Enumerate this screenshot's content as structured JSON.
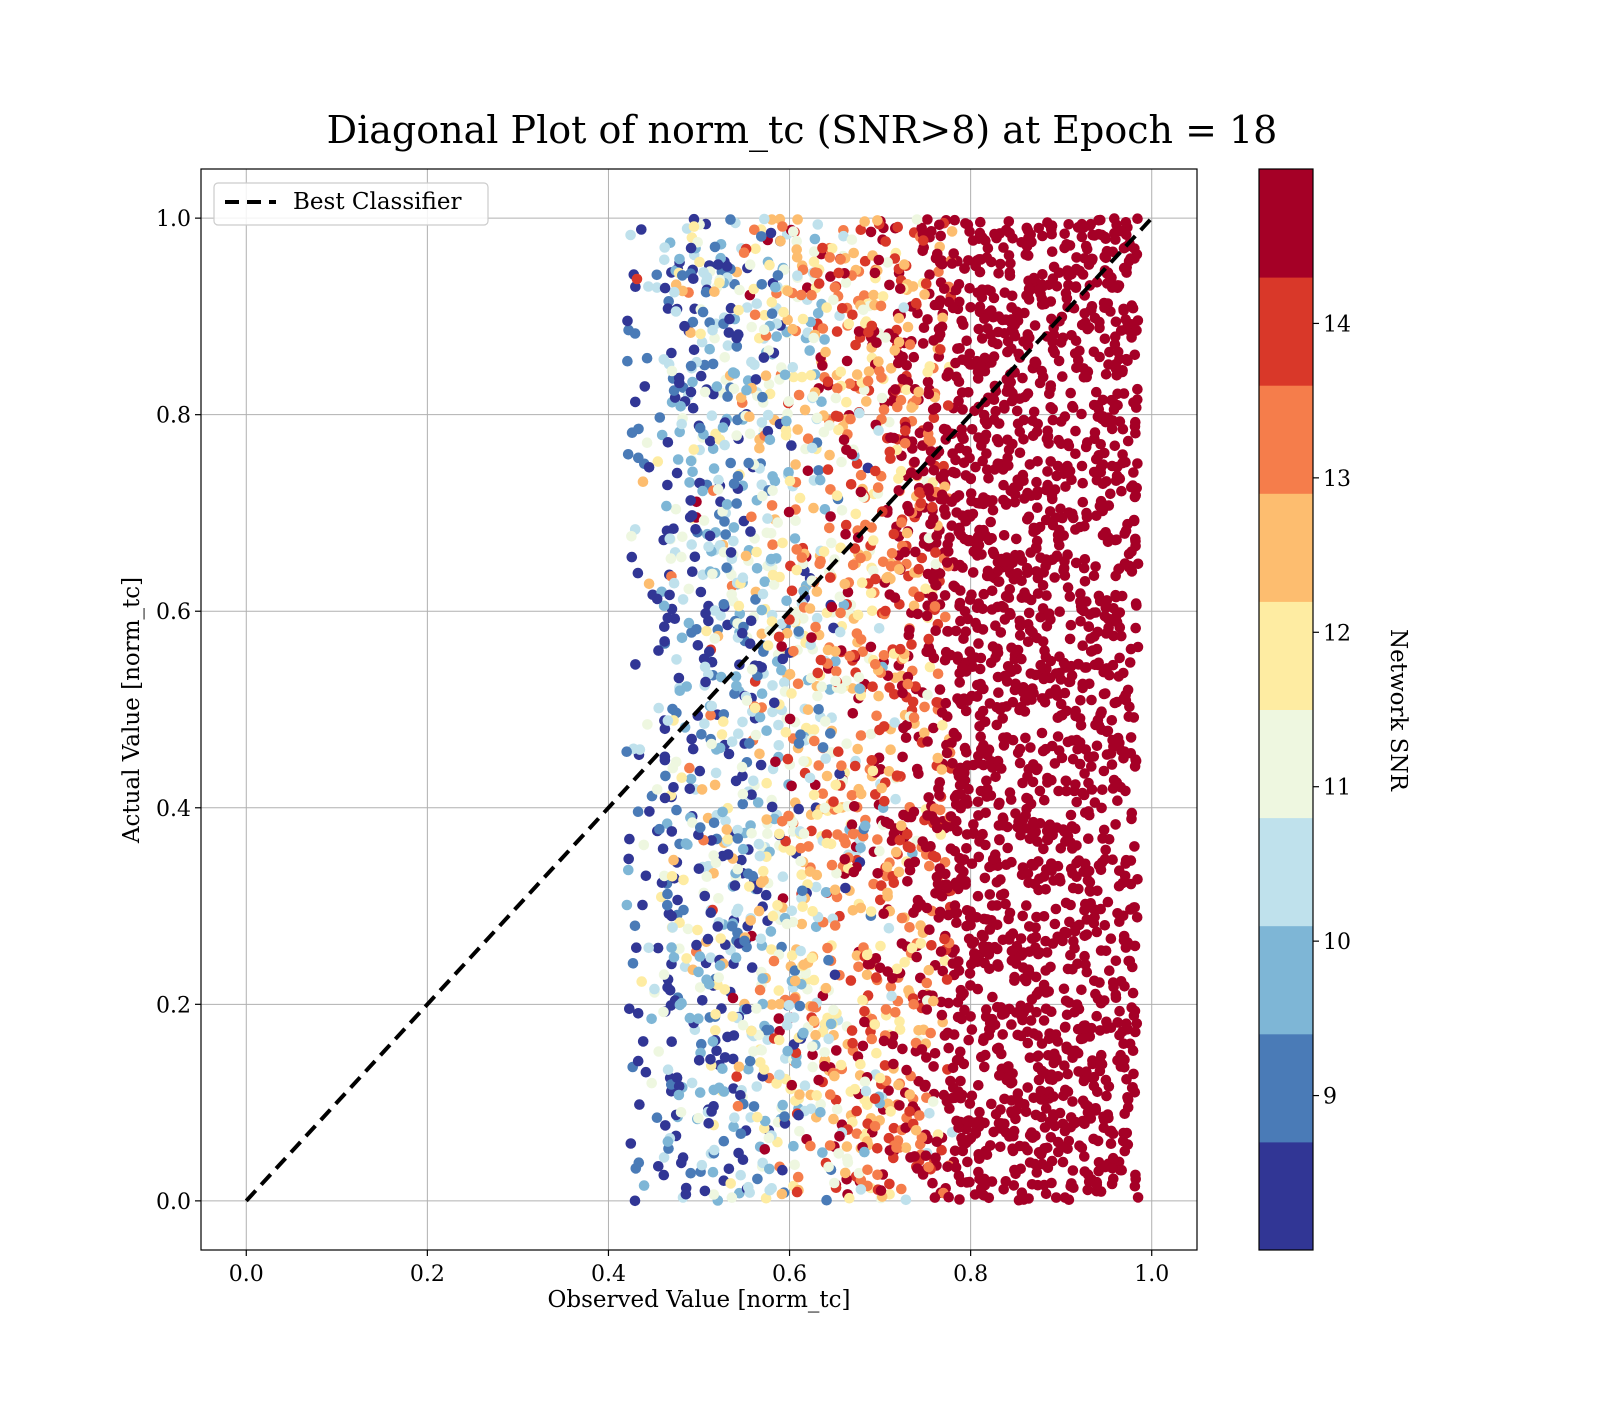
{
  "chart_data": {
    "type": "scatter",
    "title": "Diagonal Plot of norm_tc (SNR>8) at Epoch = 18",
    "xlabel": "Observed Value [norm_tc]",
    "ylabel": "Actual Value [norm_tc]",
    "xlim": [
      -0.05,
      1.05
    ],
    "ylim": [
      -0.05,
      1.05
    ],
    "xticks": [
      "0.0",
      "0.2",
      "0.4",
      "0.6",
      "0.8",
      "1.0"
    ],
    "yticks": [
      "0.0",
      "0.2",
      "0.4",
      "0.6",
      "0.8",
      "1.0"
    ],
    "grid": true,
    "legend": {
      "placement": "top-left",
      "entries": [
        "Best Classifier"
      ]
    },
    "reference_line": {
      "name": "Best Classifier",
      "style": "dashed",
      "color": "#000000",
      "x": [
        0.0,
        1.0
      ],
      "y": [
        0.0,
        1.0
      ]
    },
    "colorbar": {
      "label": "Network SNR",
      "range": [
        8.0,
        15.0
      ],
      "ticks": [
        "9",
        "10",
        "11",
        "12",
        "13",
        "14"
      ],
      "tick_values": [
        9,
        10,
        11,
        12,
        13,
        14
      ],
      "colors": [
        "#313695",
        "#4575b4",
        "#74add1",
        "#abd9e9",
        "#e0f3f8",
        "#ffffbf",
        "#fee090",
        "#fdae61",
        "#f46d43",
        "#d73027",
        "#a50026"
      ],
      "bins": [
        {
          "min": 8.0,
          "max": 8.7,
          "color": "#313695"
        },
        {
          "min": 8.7,
          "max": 9.4,
          "color": "#4a7bb7"
        },
        {
          "min": 9.4,
          "max": 10.1,
          "color": "#7eb6d6"
        },
        {
          "min": 10.1,
          "max": 10.8,
          "color": "#bfe1ec"
        },
        {
          "min": 10.8,
          "max": 11.5,
          "color": "#eef7e0"
        },
        {
          "min": 11.5,
          "max": 12.2,
          "color": "#feeca2"
        },
        {
          "min": 12.2,
          "max": 12.9,
          "color": "#fdbd6f"
        },
        {
          "min": 12.9,
          "max": 13.6,
          "color": "#f57d4b"
        },
        {
          "min": 13.6,
          "max": 14.3,
          "color": "#d93829"
        },
        {
          "min": 14.3,
          "max": 15.0,
          "color": "#a50026"
        }
      ]
    },
    "point_distribution": {
      "x_range": [
        0.42,
        0.995
      ],
      "y_range": [
        0.0,
        1.0
      ],
      "snr_trend": [
        {
          "x": 0.45,
          "snr": 9.0
        },
        {
          "x": 0.55,
          "snr": 10.3
        },
        {
          "x": 0.62,
          "snr": 11.8
        },
        {
          "x": 0.68,
          "snr": 13.0
        },
        {
          "x": 0.72,
          "snr": 14.0
        },
        {
          "x": 0.78,
          "snr": 15.0
        },
        {
          "x": 0.99,
          "snr": 15.0
        }
      ]
    }
  }
}
